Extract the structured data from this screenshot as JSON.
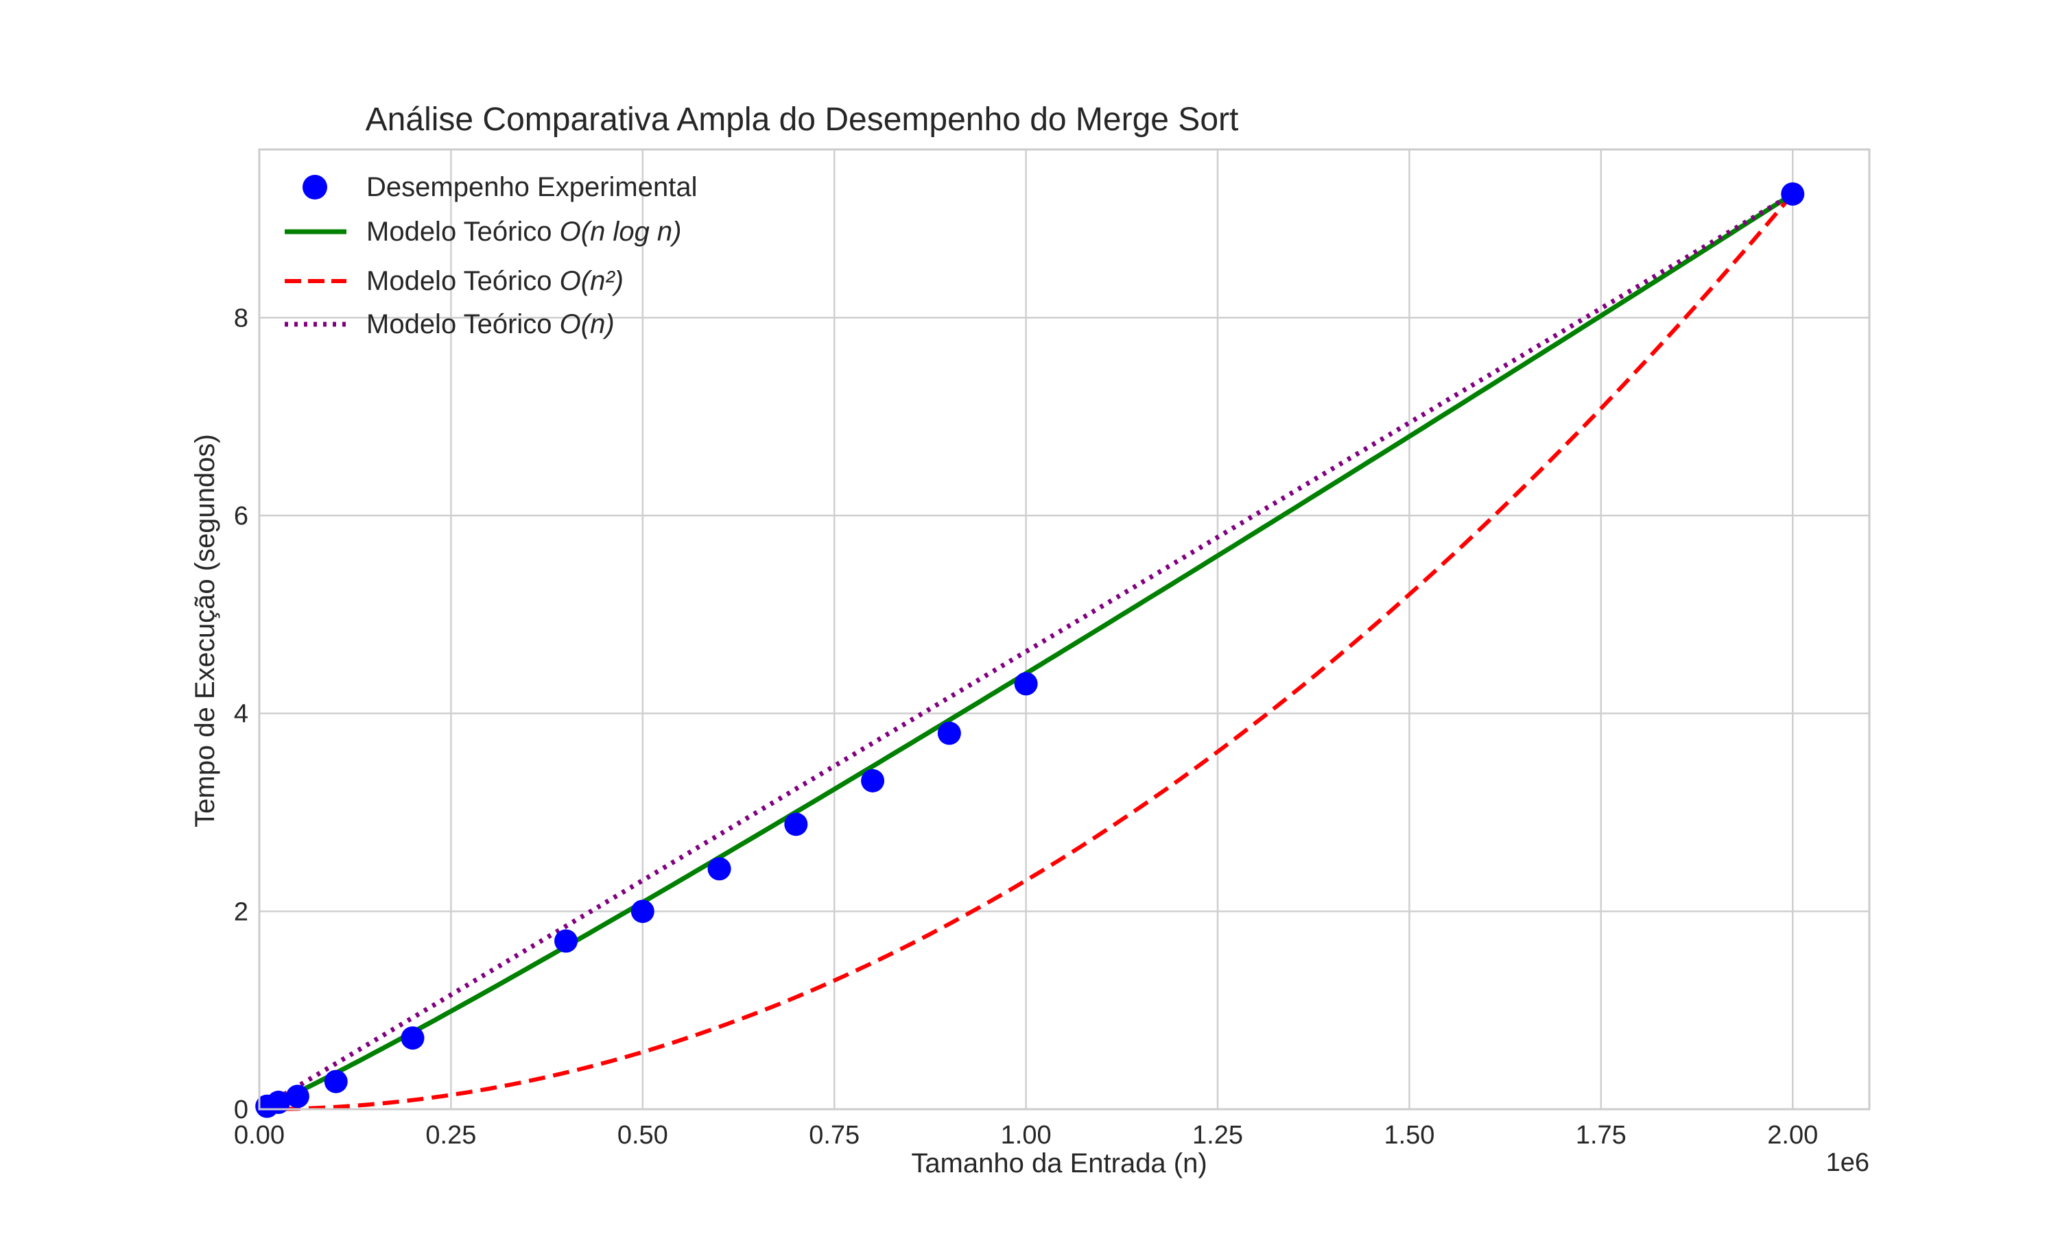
{
  "chart_data": {
    "type": "line",
    "title": "Análise Comparativa Ampla do Desempenho do Merge Sort",
    "xlabel": "Tamanho da Entrada (n)",
    "ylabel": "Tempo de Execução (segundos)",
    "x_offset_text": "1e6",
    "xlim": [
      0,
      2100000
    ],
    "ylim": [
      0,
      9.7
    ],
    "x_ticks": [
      0,
      250000,
      500000,
      750000,
      1000000,
      1250000,
      1500000,
      1750000,
      2000000
    ],
    "x_tick_labels": [
      "0.00",
      "0.25",
      "0.50",
      "0.75",
      "1.00",
      "1.25",
      "1.50",
      "1.75",
      "2.00"
    ],
    "y_ticks": [
      0,
      2,
      4,
      6,
      8
    ],
    "y_tick_labels": [
      "0",
      "2",
      "4",
      "6",
      "8"
    ],
    "grid": true,
    "legend_position": "top-left",
    "series": [
      {
        "name": "Desempenho Experimental",
        "kind": "scatter",
        "color": "#0000ff",
        "x": [
          10000,
          25000,
          50000,
          100000,
          200000,
          400000,
          500000,
          600000,
          700000,
          800000,
          900000,
          1000000,
          2000000
        ],
        "y": [
          0.03,
          0.07,
          0.13,
          0.28,
          0.72,
          1.7,
          2.0,
          2.43,
          2.88,
          3.32,
          3.8,
          4.3,
          9.25
        ]
      },
      {
        "name_prefix": "Modelo Teórico ",
        "name_math": "O(n log n)",
        "kind": "line",
        "model": "nlogn",
        "color": "#008000",
        "dash": "solid",
        "x_range": [
          0,
          2000000
        ],
        "y_end": 9.25
      },
      {
        "name_prefix": "Modelo Teórico ",
        "name_math": "O(n²)",
        "kind": "line",
        "model": "n2",
        "color": "#ff0000",
        "dash": "dashed",
        "x_range": [
          0,
          2000000
        ],
        "y_end": 9.25
      },
      {
        "name_prefix": "Modelo Teórico ",
        "name_math": "O(n)",
        "kind": "line",
        "model": "n",
        "color": "#800080",
        "dash": "dotted",
        "x_range": [
          0,
          2000000
        ],
        "y_end": 9.25
      }
    ]
  }
}
